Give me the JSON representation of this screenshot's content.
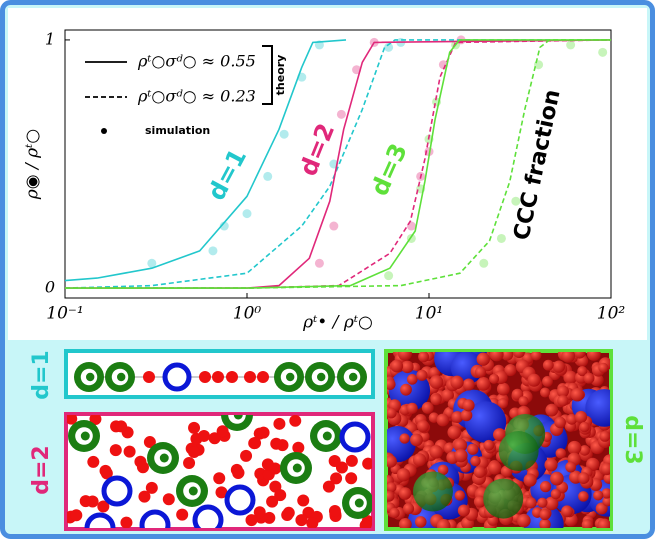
{
  "chart_data": {
    "type": "line",
    "x_label": "ρᵗ• / ρᵗ○",
    "y_label": "ρ◉ / ρᵗ○",
    "xscale": "log",
    "xlim": [
      0.1,
      100
    ],
    "ylim": [
      -0.04,
      1.04
    ],
    "xticks": [
      {
        "value": 0.1,
        "label": "10⁻¹"
      },
      {
        "value": 1,
        "label": "10⁰"
      },
      {
        "value": 10,
        "label": "10¹"
      },
      {
        "value": 100,
        "label": "10²"
      }
    ],
    "yticks": [
      0,
      1
    ],
    "series": [
      {
        "color": "#22c7cc",
        "dashed": false,
        "x": [
          0.1,
          0.15,
          0.3,
          0.55,
          1,
          1.5,
          2,
          2.3,
          3.5
        ],
        "values": [
          0.03,
          0.04,
          0.08,
          0.15,
          0.37,
          0.64,
          0.89,
          0.99,
          1
        ]
      },
      {
        "color": "#22c7cc",
        "dashed": true,
        "x": [
          0.1,
          0.3,
          1,
          2,
          2.85,
          4.3,
          5.7,
          6.5,
          100
        ],
        "values": [
          0,
          0.01,
          0.06,
          0.25,
          0.41,
          0.72,
          0.97,
          1,
          1
        ]
      },
      {
        "color": "#e0287a",
        "dashed": false,
        "x": [
          0.1,
          1,
          1.5,
          2.2,
          2.85,
          3.4,
          4.3,
          5,
          100
        ],
        "values": [
          0,
          0,
          0.01,
          0.12,
          0.35,
          0.64,
          0.91,
          0.99,
          1
        ]
      },
      {
        "color": "#e0287a",
        "dashed": true,
        "x": [
          0.1,
          1,
          3.2,
          6.1,
          7.9,
          9.5,
          11.5,
          14,
          100
        ],
        "values": [
          0,
          0,
          0.01,
          0.14,
          0.27,
          0.52,
          0.85,
          0.99,
          1
        ]
      },
      {
        "color": "#5ee03a",
        "dashed": false,
        "x": [
          0.1,
          1,
          3.7,
          6.1,
          8.4,
          9.5,
          10.8,
          13,
          14.7,
          100
        ],
        "values": [
          0,
          0,
          0.01,
          0.08,
          0.23,
          0.43,
          0.68,
          0.95,
          1,
          1
        ]
      },
      {
        "color": "#5ee03a",
        "dashed": true,
        "x": [
          0.1,
          1,
          7,
          14.8,
          21.5,
          27.8,
          33.6,
          40.7,
          46,
          100
        ],
        "values": [
          0,
          0,
          0.01,
          0.06,
          0.19,
          0.43,
          0.72,
          0.97,
          1,
          1
        ]
      }
    ],
    "simulation": [
      {
        "color": "#22c7cc",
        "x": [
          0.3,
          0.65,
          0.75,
          1,
          1.3,
          1.6,
          2,
          2.5,
          3,
          6,
          7
        ],
        "values": [
          0.1,
          0.15,
          0.25,
          0.3,
          0.45,
          0.62,
          0.85,
          0.98,
          0.5,
          0.97,
          0.99
        ]
      },
      {
        "color": "#e0287a",
        "x": [
          2.5,
          3,
          3.3,
          4,
          5,
          8,
          9,
          10,
          12,
          15
        ],
        "values": [
          0.1,
          0.25,
          0.7,
          0.88,
          0.99,
          0.25,
          0.45,
          0.55,
          0.9,
          1
        ]
      },
      {
        "color": "#5ee03a",
        "x": [
          6,
          8,
          9,
          10,
          11,
          14,
          20,
          25,
          30,
          40,
          60,
          90
        ],
        "values": [
          0.05,
          0.2,
          0.4,
          0.6,
          0.75,
          0.98,
          0.1,
          0.2,
          0.35,
          0.9,
          0.98,
          0.95
        ]
      }
    ],
    "legend": {
      "entries": [
        {
          "label": "ρᵗ○σᵈ○ ≈ 0.55",
          "dashed": false
        },
        {
          "label": "ρᵗ○σᵈ○ ≈ 0.23",
          "dashed": true
        }
      ],
      "group_label": "theory",
      "simulation_label": "simulation"
    },
    "annotations": [
      {
        "text": "d=1",
        "color": "#22c7cc"
      },
      {
        "text": "d=2",
        "color": "#e0287a"
      },
      {
        "text": "d=3",
        "color": "#5ee03a"
      },
      {
        "text": "CCC fraction",
        "color": "#000000"
      }
    ]
  },
  "panels": [
    {
      "label": "d=1",
      "color": "#22c7cc"
    },
    {
      "label": "d=2",
      "color": "#e0287a"
    },
    {
      "label": "d=3",
      "color": "#5ee03a"
    }
  ]
}
